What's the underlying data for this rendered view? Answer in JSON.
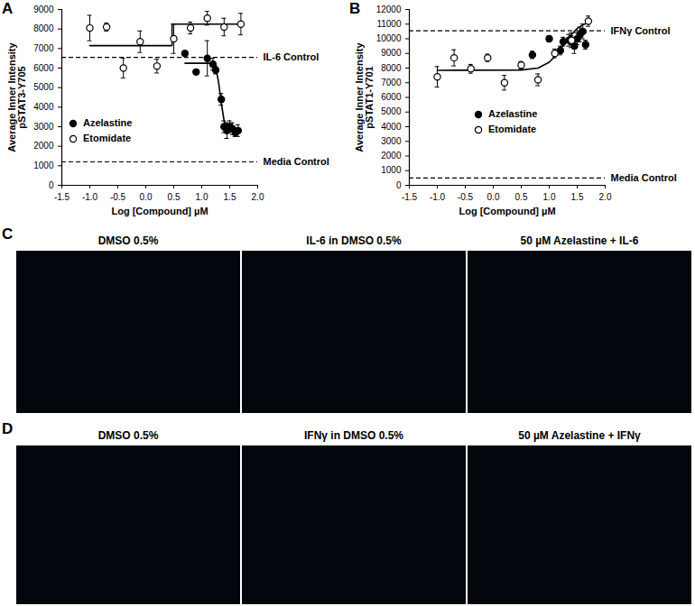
{
  "chart_data": [
    {
      "panel_label": "A",
      "type": "scatter",
      "y_label": "Average Inner Intensity\npSTAT3-Y705",
      "x_label": "Log [Compound] µM",
      "xlim": [
        -1.5,
        2.0
      ],
      "xticks": [
        -1.5,
        {
          "value": -1,
          "label": "-1.0"
        },
        -0.5,
        {
          "value": 0,
          "label": "0.0"
        },
        0.5,
        {
          "value": 1,
          "label": "1.0"
        },
        1.5,
        {
          "value": 2,
          "label": "2.0"
        }
      ],
      "ylim": [
        0,
        9000
      ],
      "yticks": [
        0,
        1000,
        2000,
        3000,
        4000,
        5000,
        6000,
        7000,
        8000,
        9000
      ],
      "grid": false,
      "legend": "lower left",
      "reference_lines": [
        {
          "value": 6550,
          "label": "IL-6 Control",
          "line_style": "dashed"
        },
        {
          "value": 1200,
          "label": "Media Control",
          "line_style": "dashed"
        }
      ],
      "series": [
        {
          "name": "Azelastine",
          "color": "#000000",
          "marker": "filled_circle",
          "line_style": "solid",
          "x": [
            0.7,
            0.9,
            1.1,
            1.2,
            1.25,
            1.35,
            1.4,
            1.45,
            1.5,
            1.55,
            1.6,
            1.65
          ],
          "values": [
            6750,
            5800,
            6500,
            6200,
            5900,
            4400,
            3000,
            2800,
            3000,
            2900,
            2700,
            2800
          ],
          "errors": [
            100,
            100,
            900,
            300,
            200,
            300,
            300,
            400,
            300,
            300,
            200,
            300
          ],
          "fit_x": [
            0.7,
            1.2,
            1.25,
            1.3,
            1.35,
            1.4,
            1.45,
            1.5,
            1.7
          ],
          "fit_values": [
            6250,
            6250,
            6050,
            5300,
            4200,
            3300,
            2900,
            2800,
            2750
          ]
        },
        {
          "name": "Etomidate",
          "color": "#000000",
          "marker": "open_circle",
          "line_style": "solid",
          "x": [
            -1.0,
            -0.7,
            -0.4,
            -0.1,
            0.2,
            0.5,
            0.8,
            1.1,
            1.4,
            1.7
          ],
          "values": [
            8050,
            8100,
            6000,
            7350,
            6100,
            7500,
            8050,
            8550,
            8100,
            8250
          ],
          "errors": [
            650,
            200,
            500,
            550,
            350,
            750,
            300,
            350,
            450,
            550
          ],
          "fit_x": [
            -1.0,
            0.47,
            0.47,
            1.7
          ],
          "fit_values": [
            7150,
            7150,
            8250,
            8250
          ]
        }
      ]
    },
    {
      "panel_label": "B",
      "type": "scatter",
      "y_label": "Average Inner Intensity\npSTAT1-Y701",
      "x_label": "Log [Compound] µM",
      "xlim": [
        -1.5,
        2.0
      ],
      "xticks": [
        -1.5,
        {
          "value": -1,
          "label": "-1.0"
        },
        -0.5,
        {
          "value": 0,
          "label": "0.0"
        },
        0.5,
        {
          "value": 1,
          "label": "1.0"
        },
        1.5,
        {
          "value": 2,
          "label": "2.0"
        }
      ],
      "ylim": [
        0,
        12000
      ],
      "yticks": [
        0,
        1000,
        2000,
        3000,
        4000,
        5000,
        6000,
        7000,
        8000,
        9000,
        10000,
        11000,
        12000
      ],
      "grid": false,
      "legend": "lower left",
      "reference_lines": [
        {
          "value": 10550,
          "label": "IFNγ Control",
          "line_style": "dashed"
        },
        {
          "value": 500,
          "label": "Media Control",
          "line_style": "dashed"
        }
      ],
      "series": [
        {
          "name": "Azelastine",
          "color": "#000000",
          "marker": "filled_circle",
          "line_style": "solid",
          "x": [
            0.7,
            1.0,
            1.2,
            1.25,
            1.35,
            1.4,
            1.45,
            1.5,
            1.55,
            1.6,
            1.65
          ],
          "values": [
            8900,
            10000,
            9200,
            9800,
            9900,
            9900,
            9500,
            10000,
            10300,
            10500,
            9600
          ],
          "errors": [
            250,
            200,
            300,
            300,
            400,
            300,
            500,
            400,
            500,
            500,
            300
          ],
          "fit_x": [],
          "fit_values": []
        },
        {
          "name": "Etomidate",
          "color": "#000000",
          "marker": "open_circle",
          "line_style": "solid",
          "x": [
            -1.0,
            -0.7,
            -0.4,
            -0.1,
            0.2,
            0.5,
            0.8,
            1.1,
            1.4,
            1.7
          ],
          "values": [
            7400,
            8700,
            7950,
            8700,
            7000,
            8200,
            7200,
            9000,
            9900,
            11200
          ],
          "errors": [
            700,
            550,
            300,
            250,
            500,
            250,
            400,
            300,
            500,
            350
          ],
          "fit_x": [
            -1.0,
            0.5,
            0.8,
            1.0,
            1.1,
            1.2,
            1.3,
            1.4,
            1.5,
            1.6,
            1.7
          ],
          "fit_values": [
            7850,
            7870,
            8000,
            8400,
            8800,
            9300,
            9800,
            10300,
            10700,
            10950,
            11100
          ]
        }
      ]
    }
  ],
  "panels": [
    {
      "panel_label": "C",
      "images": [
        "DMSO 0.5%",
        "IL-6 in DMSO 0.5%",
        "50 µM Azelastine + IL-6"
      ]
    },
    {
      "panel_label": "D",
      "images": [
        "DMSO 0.5%",
        "IFNγ in DMSO 0.5%",
        "50 µM Azelastine + IFNγ"
      ]
    }
  ]
}
